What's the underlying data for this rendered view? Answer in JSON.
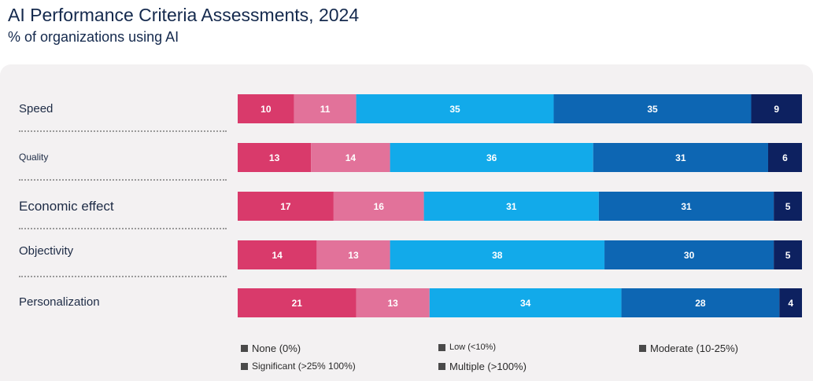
{
  "header": {
    "title": "AI Performance Criteria Assessments, 2024",
    "subtitle": "% of organizations using AI"
  },
  "colors": {
    "panel_bg": "#f3f1f2",
    "none": "#d93a6b",
    "low": "#e2729a",
    "moderate": "#12aaea",
    "significant": "#0d66b3",
    "multiple": "#0d2160",
    "label_text": "#ffffff"
  },
  "legend": [
    {
      "key": "none",
      "label": "None (0%)"
    },
    {
      "key": "low",
      "label": "Low (<10%)"
    },
    {
      "key": "moderate",
      "label": "Moderate (10-25%)"
    },
    {
      "key": "significant",
      "label": "Significant (>25% 100%)"
    },
    {
      "key": "multiple",
      "label": "Multiple (>100%)"
    }
  ],
  "chart_data": {
    "type": "bar",
    "orientation": "horizontal",
    "stacked": true,
    "title": "AI Performance Criteria Assessments, 2024",
    "subtitle": "% of organizations using AI",
    "categories": [
      "Speed",
      "Quality",
      "Economic effect",
      "Objectivity",
      "Personalization"
    ],
    "series": [
      {
        "name": "None (0%)",
        "key": "none",
        "values": [
          10,
          13,
          17,
          14,
          21
        ]
      },
      {
        "name": "Low (<10%)",
        "key": "low",
        "values": [
          11,
          14,
          16,
          13,
          13
        ]
      },
      {
        "name": "Moderate (10-25%)",
        "key": "moderate",
        "values": [
          35,
          36,
          31,
          38,
          34
        ]
      },
      {
        "name": "Significant (>25% 100%)",
        "key": "significant",
        "values": [
          35,
          31,
          31,
          30,
          28
        ]
      },
      {
        "name": "Multiple (>100%)",
        "key": "multiple",
        "values": [
          9,
          6,
          5,
          5,
          4
        ]
      }
    ],
    "data_labels": true,
    "legend_position": "bottom",
    "grid": false
  }
}
